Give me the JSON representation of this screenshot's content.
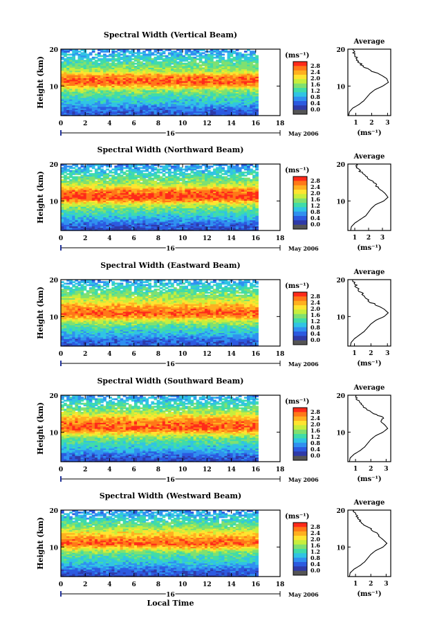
{
  "chart_data": {
    "type": "heatmap",
    "x_axis": {
      "range": [
        0,
        18
      ],
      "ticks": [
        "0",
        "2",
        "4",
        "6",
        "8",
        "10",
        "12",
        "14",
        "16",
        "18"
      ],
      "day_label": "16",
      "date_label": "May 2006",
      "xlabel": "Local Time"
    },
    "y_axis": {
      "ylabel": "Height (km)",
      "range": [
        2,
        20
      ],
      "ticks": [
        "10",
        "20"
      ]
    },
    "data_end_time": 16.2,
    "colorbar": {
      "unit": "(ms⁻¹)",
      "ticks": [
        "2.8",
        "2.4",
        "2.0",
        "1.6",
        "1.2",
        "0.8",
        "0.4",
        "0.0"
      ],
      "colors": [
        "#ff2a1a",
        "#ff7818",
        "#ffb020",
        "#ffe430",
        "#c8ee3c",
        "#80e070",
        "#40dca8",
        "#30c4e4",
        "#3090f0",
        "#2c5ae0",
        "#2f3aa8",
        "#555555"
      ]
    },
    "panels": [
      {
        "title": "Spectral Width (Vertical Beam)",
        "bands": [
          [
            2,
            0.35
          ],
          [
            3,
            0.4
          ],
          [
            4,
            0.55
          ],
          [
            5,
            0.8
          ],
          [
            6,
            1.0
          ],
          [
            7,
            1.15
          ],
          [
            8,
            1.35
          ],
          [
            9,
            1.6
          ],
          [
            10,
            2.2
          ],
          [
            11,
            2.7
          ],
          [
            12,
            2.6
          ],
          [
            13,
            2.4
          ],
          [
            14,
            1.7
          ],
          [
            15,
            1.5
          ],
          [
            16,
            1.3
          ],
          [
            17,
            1.2
          ],
          [
            18,
            1.0
          ],
          [
            19,
            0.8
          ],
          [
            20,
            0.6
          ]
        ],
        "avg": {
          "xlim": [
            0.5,
            3.2
          ],
          "xticks": [
            "1",
            "2",
            "3"
          ],
          "xtick_vals": [
            1,
            2,
            3
          ],
          "profile": [
            [
              0.55,
              2
            ],
            [
              0.6,
              3
            ],
            [
              0.8,
              4
            ],
            [
              1.2,
              5
            ],
            [
              1.5,
              6
            ],
            [
              1.7,
              7
            ],
            [
              1.9,
              8
            ],
            [
              2.2,
              9
            ],
            [
              2.7,
              10
            ],
            [
              3.05,
              11
            ],
            [
              2.95,
              12
            ],
            [
              2.6,
              13
            ],
            [
              2.0,
              14
            ],
            [
              1.6,
              15
            ],
            [
              1.3,
              16
            ],
            [
              1.1,
              17
            ],
            [
              1.0,
              18
            ],
            [
              0.9,
              19
            ],
            [
              0.8,
              20
            ]
          ]
        }
      },
      {
        "title": "Spectral Width (Northward Beam)",
        "bands": [
          [
            2,
            0.3
          ],
          [
            3,
            0.35
          ],
          [
            4,
            0.5
          ],
          [
            5,
            0.8
          ],
          [
            6,
            1.0
          ],
          [
            7,
            1.2
          ],
          [
            8,
            1.4
          ],
          [
            9,
            1.7
          ],
          [
            10,
            2.3
          ],
          [
            11,
            2.8
          ],
          [
            12,
            2.7
          ],
          [
            13,
            2.5
          ],
          [
            14,
            1.9
          ],
          [
            15,
            1.6
          ],
          [
            16,
            1.4
          ],
          [
            17,
            1.2
          ],
          [
            18,
            1.0
          ],
          [
            19,
            0.8
          ],
          [
            20,
            0.6
          ]
        ],
        "avg": {
          "xlim": [
            0.5,
            3.6
          ],
          "xticks": [
            "1",
            "2",
            "3"
          ],
          "xtick_vals": [
            1,
            2,
            3
          ],
          "profile": [
            [
              0.7,
              2
            ],
            [
              0.75,
              3
            ],
            [
              1.0,
              4
            ],
            [
              1.4,
              5
            ],
            [
              1.8,
              6
            ],
            [
              2.0,
              7
            ],
            [
              2.2,
              8
            ],
            [
              2.5,
              9
            ],
            [
              3.1,
              10
            ],
            [
              3.4,
              11
            ],
            [
              3.2,
              12
            ],
            [
              2.9,
              13
            ],
            [
              2.6,
              14
            ],
            [
              2.4,
              15
            ],
            [
              2.0,
              16
            ],
            [
              1.7,
              17
            ],
            [
              1.4,
              18
            ],
            [
              1.2,
              19
            ],
            [
              1.1,
              20
            ]
          ]
        }
      },
      {
        "title": "Spectral Width (Eastward Beam)",
        "bands": [
          [
            2,
            0.35
          ],
          [
            3,
            0.4
          ],
          [
            4,
            0.55
          ],
          [
            5,
            0.8
          ],
          [
            6,
            1.0
          ],
          [
            7,
            1.2
          ],
          [
            8,
            1.45
          ],
          [
            9,
            1.8
          ],
          [
            10,
            2.4
          ],
          [
            11,
            2.7
          ],
          [
            12,
            2.5
          ],
          [
            13,
            2.3
          ],
          [
            14,
            1.9
          ],
          [
            15,
            1.7
          ],
          [
            16,
            1.5
          ],
          [
            17,
            1.3
          ],
          [
            18,
            1.1
          ],
          [
            19,
            0.9
          ],
          [
            20,
            0.7
          ]
        ],
        "avg": {
          "xlim": [
            0.6,
            3.2
          ],
          "xticks": [
            "1",
            "2",
            "3"
          ],
          "xtick_vals": [
            1,
            2,
            3
          ],
          "profile": [
            [
              0.75,
              2
            ],
            [
              0.8,
              3
            ],
            [
              1.0,
              4
            ],
            [
              1.3,
              5
            ],
            [
              1.6,
              6
            ],
            [
              1.8,
              7
            ],
            [
              2.0,
              8
            ],
            [
              2.3,
              9
            ],
            [
              2.8,
              10
            ],
            [
              3.05,
              11
            ],
            [
              2.8,
              12
            ],
            [
              2.4,
              13
            ],
            [
              1.9,
              14
            ],
            [
              1.7,
              15
            ],
            [
              1.5,
              16
            ],
            [
              1.3,
              17
            ],
            [
              1.15,
              18
            ],
            [
              1.0,
              19
            ],
            [
              0.9,
              20
            ]
          ]
        }
      },
      {
        "title": "Spectral Width (Southward Beam)",
        "bands": [
          [
            2,
            0.3
          ],
          [
            3,
            0.35
          ],
          [
            4,
            0.5
          ],
          [
            5,
            0.8
          ],
          [
            6,
            1.0
          ],
          [
            7,
            1.15
          ],
          [
            8,
            1.35
          ],
          [
            9,
            1.6
          ],
          [
            10,
            2.2
          ],
          [
            11,
            2.7
          ],
          [
            12,
            2.6
          ],
          [
            13,
            2.5
          ],
          [
            14,
            2.2
          ],
          [
            15,
            1.8
          ],
          [
            16,
            1.5
          ],
          [
            17,
            1.3
          ],
          [
            18,
            1.1
          ],
          [
            19,
            0.9
          ],
          [
            20,
            0.7
          ]
        ],
        "avg": {
          "xlim": [
            0.5,
            3.3
          ],
          "xticks": [
            "1",
            "2",
            "3"
          ],
          "xtick_vals": [
            1,
            2,
            3
          ],
          "profile": [
            [
              0.6,
              2
            ],
            [
              0.65,
              3
            ],
            [
              0.9,
              4
            ],
            [
              1.3,
              5
            ],
            [
              1.6,
              6
            ],
            [
              1.8,
              7
            ],
            [
              2.0,
              8
            ],
            [
              2.3,
              9
            ],
            [
              2.8,
              10
            ],
            [
              3.1,
              11
            ],
            [
              2.9,
              12
            ],
            [
              2.6,
              13
            ],
            [
              2.8,
              14
            ],
            [
              2.2,
              15
            ],
            [
              1.8,
              16
            ],
            [
              1.5,
              17
            ],
            [
              1.3,
              18
            ],
            [
              1.1,
              19
            ],
            [
              1.0,
              20
            ]
          ]
        }
      },
      {
        "title": "Spectral Width (Westward Beam)",
        "bands": [
          [
            2,
            0.3
          ],
          [
            3,
            0.35
          ],
          [
            4,
            0.5
          ],
          [
            5,
            0.8
          ],
          [
            6,
            1.0
          ],
          [
            7,
            1.15
          ],
          [
            8,
            1.3
          ],
          [
            9,
            1.6
          ],
          [
            10,
            2.2
          ],
          [
            11,
            2.7
          ],
          [
            12,
            2.5
          ],
          [
            13,
            2.3
          ],
          [
            14,
            2.0
          ],
          [
            15,
            1.7
          ],
          [
            16,
            1.4
          ],
          [
            17,
            1.2
          ],
          [
            18,
            1.0
          ],
          [
            19,
            0.8
          ],
          [
            20,
            0.6
          ]
        ],
        "avg": {
          "xlim": [
            0.5,
            3.3
          ],
          "xticks": [
            "1",
            "2",
            "3"
          ],
          "xtick_vals": [
            1,
            2,
            3
          ],
          "profile": [
            [
              0.6,
              2
            ],
            [
              0.65,
              3
            ],
            [
              0.9,
              4
            ],
            [
              1.3,
              5
            ],
            [
              1.6,
              6
            ],
            [
              1.8,
              7
            ],
            [
              2.0,
              8
            ],
            [
              2.3,
              9
            ],
            [
              2.8,
              10
            ],
            [
              3.05,
              11
            ],
            [
              2.8,
              12
            ],
            [
              2.5,
              13
            ],
            [
              2.3,
              14
            ],
            [
              2.0,
              15
            ],
            [
              1.6,
              16
            ],
            [
              1.3,
              17
            ],
            [
              1.1,
              18
            ],
            [
              1.0,
              19
            ],
            [
              0.9,
              20
            ]
          ]
        }
      }
    ],
    "avg_title": "Average",
    "avg_xlabel": "(ms⁻¹)"
  }
}
